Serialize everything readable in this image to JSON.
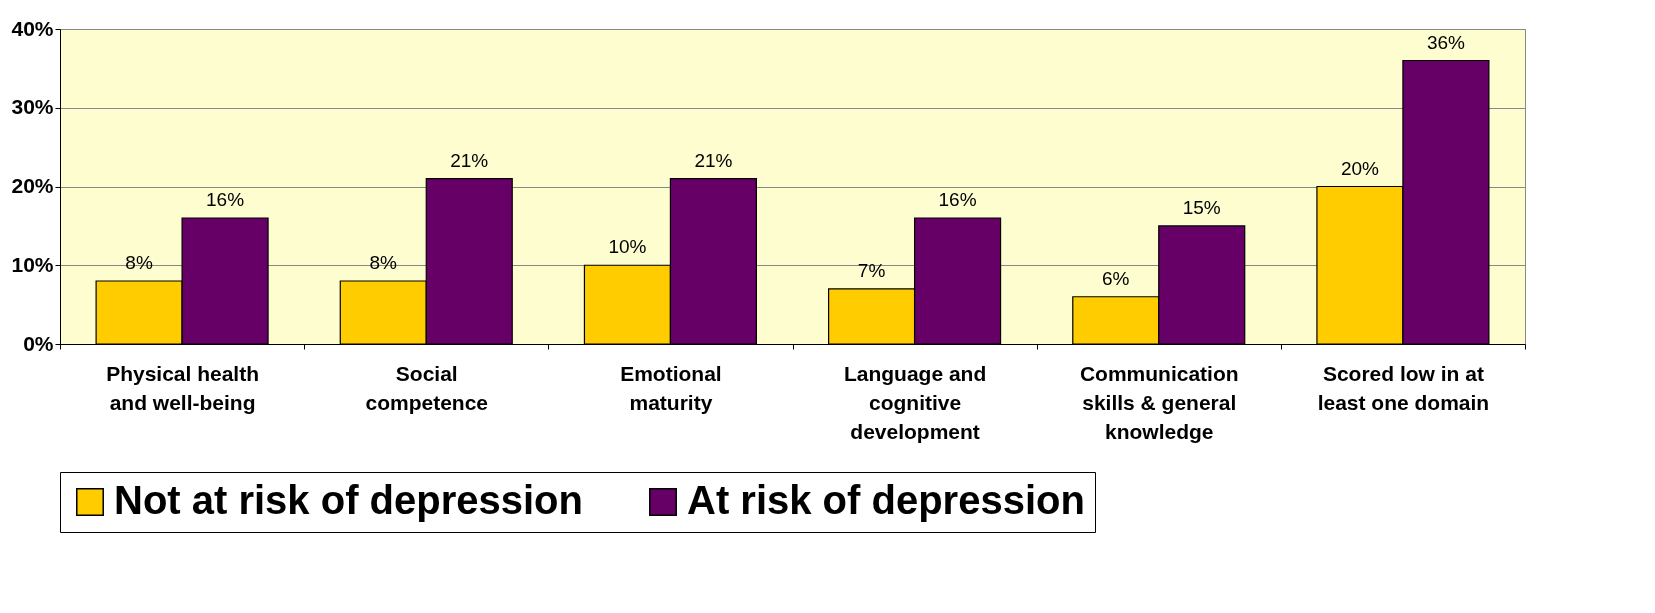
{
  "chart_data": {
    "type": "bar",
    "categories": [
      "Physical health and well-being",
      "Social competence",
      "Emotional maturity",
      "Language and cognitive development",
      "Communication skills & general knowledge",
      "Scored low in at least one domain"
    ],
    "series": [
      {
        "name": "Not at risk of depression",
        "color": "#ffcc00",
        "values": [
          8,
          8,
          10,
          7,
          6,
          20
        ],
        "value_labels": [
          "8%",
          "8%",
          "10%",
          "7%",
          "6%",
          "20%"
        ]
      },
      {
        "name": "At risk of depression",
        "color": "#660066",
        "values": [
          16,
          21,
          21,
          16,
          15,
          36
        ],
        "value_labels": [
          "16%",
          "21%",
          "21%",
          "16%",
          "15%",
          "36%"
        ]
      }
    ],
    "ylim": [
      0,
      40
    ],
    "yticks": [
      {
        "value": 0,
        "label": "0%"
      },
      {
        "value": 10,
        "label": "10%"
      },
      {
        "value": 20,
        "label": "20%"
      },
      {
        "value": 30,
        "label": "30%"
      },
      {
        "value": 40,
        "label": "40%"
      }
    ],
    "grid": "y",
    "legend": "bottom"
  }
}
